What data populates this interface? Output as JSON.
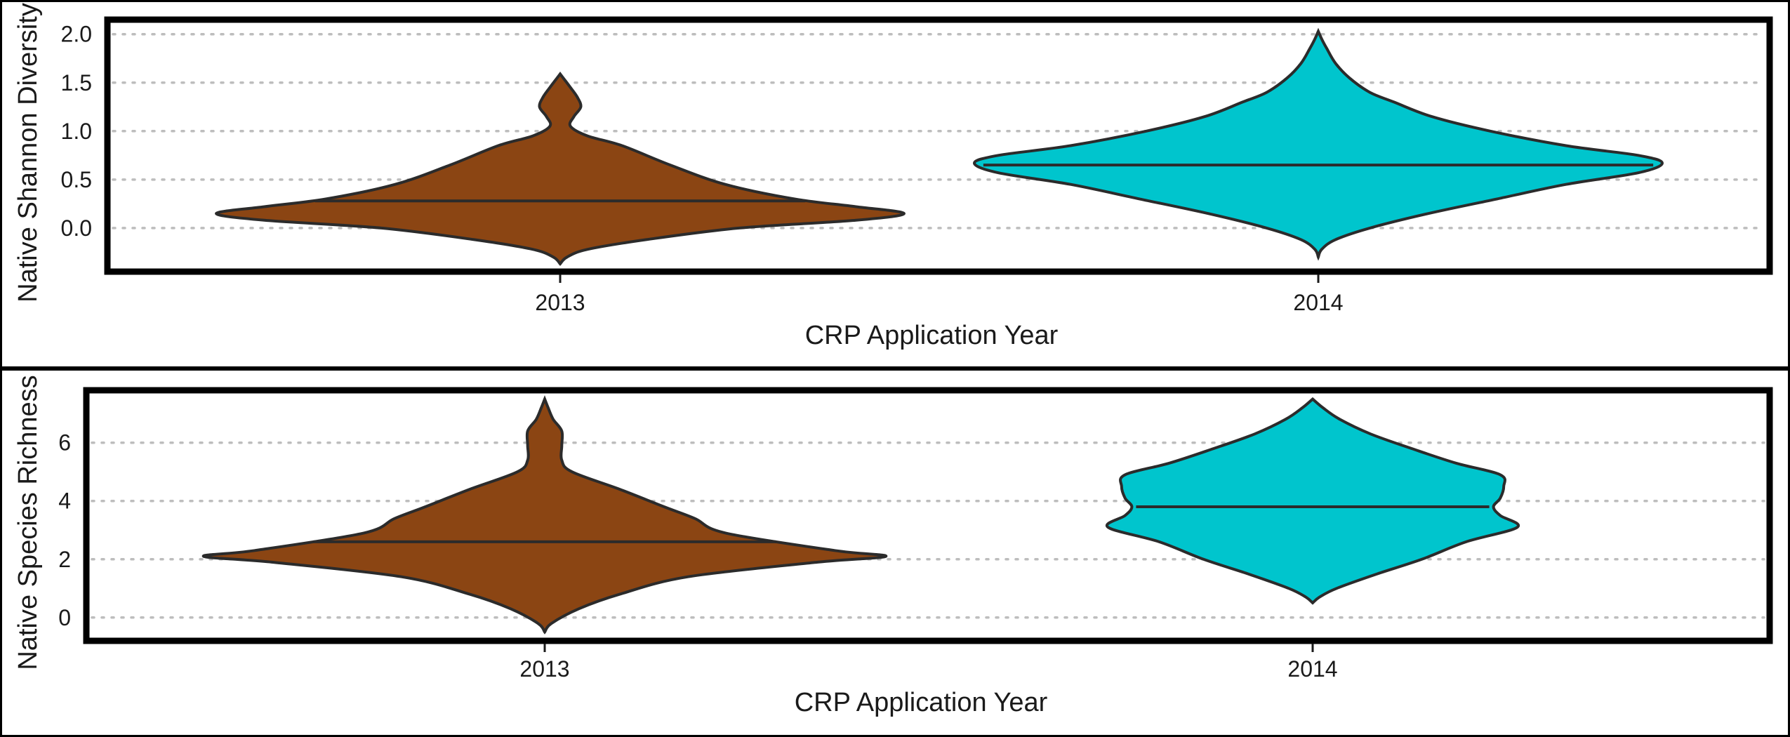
{
  "chart_data": [
    {
      "type": "violin",
      "xlabel": "CRP Application Year",
      "ylabel": "Native Shannon Diversity",
      "categories": [
        "2013",
        "2014"
      ],
      "colors": {
        "2013": "#8B4513",
        "2014": "#00C5CD"
      },
      "ylim": [
        -0.45,
        2.15
      ],
      "yticks": [
        "0.0",
        "0.5",
        "1.0",
        "1.5",
        "2.0"
      ],
      "grid": "horizontal dotted",
      "medians": [
        0.28,
        0.65
      ],
      "violins": [
        {
          "category": "2013",
          "median": 0.28,
          "profile": [
            [
              -0.37,
              0.0
            ],
            [
              -0.3,
              0.02
            ],
            [
              -0.22,
              0.08
            ],
            [
              -0.12,
              0.25
            ],
            [
              0.0,
              0.52
            ],
            [
              0.08,
              0.86
            ],
            [
              0.15,
              1.0
            ],
            [
              0.22,
              0.86
            ],
            [
              0.3,
              0.68
            ],
            [
              0.45,
              0.48
            ],
            [
              0.65,
              0.32
            ],
            [
              0.85,
              0.18
            ],
            [
              0.95,
              0.08
            ],
            [
              1.05,
              0.03
            ],
            [
              1.15,
              0.04
            ],
            [
              1.25,
              0.06
            ],
            [
              1.35,
              0.05
            ],
            [
              1.45,
              0.03
            ],
            [
              1.52,
              0.015
            ],
            [
              1.59,
              0.0
            ]
          ]
        },
        {
          "category": "2014",
          "median": 0.65,
          "profile": [
            [
              -0.3,
              0.0
            ],
            [
              -0.22,
              0.01
            ],
            [
              -0.12,
              0.05
            ],
            [
              0.0,
              0.15
            ],
            [
              0.15,
              0.32
            ],
            [
              0.3,
              0.52
            ],
            [
              0.45,
              0.72
            ],
            [
              0.57,
              0.93
            ],
            [
              0.67,
              1.0
            ],
            [
              0.75,
              0.93
            ],
            [
              0.85,
              0.72
            ],
            [
              1.0,
              0.5
            ],
            [
              1.15,
              0.33
            ],
            [
              1.3,
              0.22
            ],
            [
              1.4,
              0.15
            ],
            [
              1.55,
              0.09
            ],
            [
              1.7,
              0.05
            ],
            [
              1.85,
              0.025
            ],
            [
              1.95,
              0.01
            ],
            [
              2.03,
              0.0
            ]
          ]
        }
      ]
    },
    {
      "type": "violin",
      "xlabel": "CRP Application Year",
      "ylabel": "Native Species Richness",
      "categories": [
        "2013",
        "2014"
      ],
      "colors": {
        "2013": "#8B4513",
        "2014": "#00C5CD"
      },
      "ylim": [
        -0.8,
        7.8
      ],
      "yticks": [
        "0",
        "2",
        "4",
        "6"
      ],
      "grid": "horizontal dotted",
      "medians": [
        2.6,
        3.8
      ],
      "violins": [
        {
          "category": "2013",
          "median": 2.6,
          "profile": [
            [
              -0.5,
              0.0
            ],
            [
              -0.2,
              0.02
            ],
            [
              0.3,
              0.1
            ],
            [
              0.8,
              0.22
            ],
            [
              1.4,
              0.42
            ],
            [
              1.9,
              0.8
            ],
            [
              2.1,
              1.0
            ],
            [
              2.3,
              0.85
            ],
            [
              2.9,
              0.53
            ],
            [
              3.4,
              0.44
            ],
            [
              3.8,
              0.35
            ],
            [
              4.4,
              0.22
            ],
            [
              5.0,
              0.08
            ],
            [
              5.4,
              0.05
            ],
            [
              5.9,
              0.05
            ],
            [
              6.4,
              0.05
            ],
            [
              6.8,
              0.025
            ],
            [
              7.2,
              0.01
            ],
            [
              7.5,
              0.0
            ]
          ]
        },
        {
          "category": "2014",
          "median": 3.8,
          "profile": [
            [
              0.5,
              0.0
            ],
            [
              0.7,
              0.02
            ],
            [
              1.0,
              0.07
            ],
            [
              1.5,
              0.19
            ],
            [
              2.0,
              0.32
            ],
            [
              2.6,
              0.45
            ],
            [
              3.1,
              0.6
            ],
            [
              3.5,
              0.55
            ],
            [
              3.8,
              0.53
            ],
            [
              4.1,
              0.55
            ],
            [
              4.5,
              0.56
            ],
            [
              4.9,
              0.55
            ],
            [
              5.3,
              0.42
            ],
            [
              5.8,
              0.29
            ],
            [
              6.3,
              0.17
            ],
            [
              6.8,
              0.08
            ],
            [
              7.2,
              0.03
            ],
            [
              7.5,
              0.0
            ]
          ]
        }
      ]
    }
  ]
}
